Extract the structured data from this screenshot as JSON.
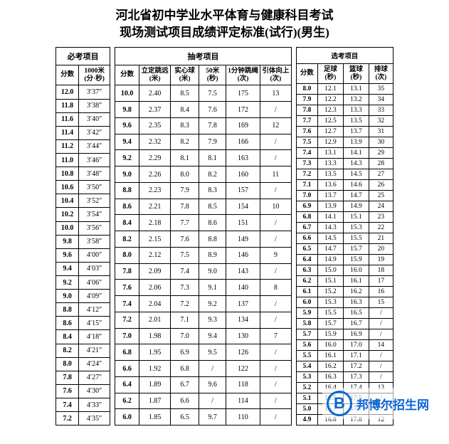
{
  "title_line1": "河北省初中学业水平体育与健康科目考试",
  "title_line2": "现场测试项目成绩评定标准(试行)(男生)",
  "required": {
    "header": "必考项目",
    "cols": [
      "分数",
      "1000米<br>(分·秒)"
    ],
    "rows": [
      [
        "12.0",
        "3′37″"
      ],
      [
        "11.8",
        "3′38″"
      ],
      [
        "11.6",
        "3′40″"
      ],
      [
        "11.4",
        "3′42″"
      ],
      [
        "11.2",
        "3′44″"
      ],
      [
        "11.0",
        "3′46″"
      ],
      [
        "10.8",
        "3′48″"
      ],
      [
        "10.6",
        "3′50″"
      ],
      [
        "10.4",
        "3′52″"
      ],
      [
        "10.2",
        "3′54″"
      ],
      [
        "10.0",
        "3′56″"
      ],
      [
        "9.8",
        "3′58″"
      ],
      [
        "9.6",
        "4′00″"
      ],
      [
        "9.4",
        "4′03″"
      ],
      [
        "9.2",
        "4′06″"
      ],
      [
        "9.0",
        "4′09″"
      ],
      [
        "8.8",
        "4′12″"
      ],
      [
        "8.6",
        "4′15″"
      ],
      [
        "8.4",
        "4′18″"
      ],
      [
        "8.2",
        "4′21″"
      ],
      [
        "8.0",
        "4′24″"
      ],
      [
        "7.8",
        "4′27″"
      ],
      [
        "7.6",
        "4′30″"
      ],
      [
        "7.4",
        "4′33″"
      ],
      [
        "7.2",
        "4′35″"
      ]
    ]
  },
  "test": {
    "header": "抽考项目",
    "cols": [
      "分数",
      "立定跳远<br>(米)",
      "实心球<br>(米)",
      "50米<br>(秒)",
      "1分钟跳绳<br>(次)",
      "引体向上<br>(次)"
    ],
    "rows": [
      [
        "10.0",
        "2.40",
        "8.5",
        "7.5",
        "175",
        "13"
      ],
      [
        "9.8",
        "2.37",
        "8.4",
        "7.6",
        "172",
        "/"
      ],
      [
        "9.6",
        "2.35",
        "8.3",
        "7.8",
        "169",
        "12"
      ],
      [
        "9.4",
        "2.32",
        "8.2",
        "7.9",
        "166",
        "/"
      ],
      [
        "9.2",
        "2.29",
        "8.1",
        "8.1",
        "163",
        "/"
      ],
      [
        "9.0",
        "2.26",
        "8.0",
        "8.2",
        "160",
        "11"
      ],
      [
        "8.8",
        "2.23",
        "7.9",
        "8.3",
        "157",
        "/"
      ],
      [
        "8.6",
        "2.21",
        "7.8",
        "8.5",
        "154",
        "10"
      ],
      [
        "8.4",
        "2.18",
        "7.7",
        "8.6",
        "151",
        "/"
      ],
      [
        "8.2",
        "2.15",
        "7.6",
        "8.8",
        "149",
        "/"
      ],
      [
        "8.0",
        "2.12",
        "7.5",
        "8.9",
        "146",
        "9"
      ],
      [
        "7.8",
        "2.09",
        "7.4",
        "9.0",
        "143",
        "/"
      ],
      [
        "7.6",
        "2.06",
        "7.3",
        "9.1",
        "140",
        "8"
      ],
      [
        "7.4",
        "2.04",
        "7.2",
        "9.2",
        "137",
        "/"
      ],
      [
        "7.2",
        "2.01",
        "7.1",
        "9.3",
        "134",
        "/"
      ],
      [
        "7.0",
        "1.98",
        "7.0",
        "9.4",
        "130",
        "7"
      ],
      [
        "6.8",
        "1.95",
        "6.9",
        "9.5",
        "126",
        "/"
      ],
      [
        "6.6",
        "1.92",
        "6.8",
        "/",
        "122",
        "/"
      ],
      [
        "6.4",
        "1.89",
        "6.7",
        "9.6",
        "118",
        "/"
      ],
      [
        "6.2",
        "1.87",
        "6.6",
        "/",
        "114",
        "/"
      ],
      [
        "6.0",
        "1.85",
        "6.5",
        "9.7",
        "110",
        "/"
      ]
    ]
  },
  "elective": {
    "header": "选考项目",
    "cols": [
      "分数",
      "足球<br>(秒)",
      "篮球<br>(秒)",
      "排球<br>(次)"
    ],
    "rows": [
      [
        "8.0",
        "12.1",
        "13.1",
        "35"
      ],
      [
        "7.9",
        "12.2",
        "13.2",
        "34"
      ],
      [
        "7.8",
        "12.3",
        "13.3",
        "33"
      ],
      [
        "7.7",
        "12.5",
        "13.5",
        "32"
      ],
      [
        "7.6",
        "12.7",
        "13.7",
        "31"
      ],
      [
        "7.5",
        "12.9",
        "13.9",
        "30"
      ],
      [
        "7.4",
        "13.1",
        "14.1",
        "29"
      ],
      [
        "7.3",
        "13.3",
        "14.3",
        "28"
      ],
      [
        "7.2",
        "13.5",
        "14.5",
        "27"
      ],
      [
        "7.1",
        "13.6",
        "14.6",
        "26"
      ],
      [
        "7.0",
        "13.7",
        "14.7",
        "25"
      ],
      [
        "6.9",
        "13.9",
        "14.9",
        "24"
      ],
      [
        "6.8",
        "14.1",
        "15.1",
        "23"
      ],
      [
        "6.7",
        "14.3",
        "15.3",
        "22"
      ],
      [
        "6.6",
        "14.5",
        "15.5",
        "21"
      ],
      [
        "6.5",
        "14.7",
        "15.7",
        "20"
      ],
      [
        "6.4",
        "14.9",
        "15.9",
        "19"
      ],
      [
        "6.3",
        "15.0",
        "16.0",
        "18"
      ],
      [
        "6.2",
        "15.1",
        "16.1",
        "17"
      ],
      [
        "6.1",
        "15.2",
        "16.2",
        "16"
      ],
      [
        "6.0",
        "15.3",
        "16.3",
        "15"
      ],
      [
        "5.9",
        "15.5",
        "16.5",
        "/"
      ],
      [
        "5.8",
        "15.7",
        "16.7",
        "/"
      ],
      [
        "5.7",
        "15.9",
        "16.9",
        "/"
      ],
      [
        "5.6",
        "16.0",
        "17.0",
        "14"
      ],
      [
        "5.5",
        "16.1",
        "17.1",
        "/"
      ],
      [
        "5.4",
        "16.2",
        "17.2",
        "/"
      ],
      [
        "5.3",
        "16.3",
        "17.3",
        "/"
      ],
      [
        "5.2",
        "16.4",
        "17.4",
        "13"
      ],
      [
        "5.1",
        "16.5",
        "17.5",
        "/"
      ],
      [
        "5.0",
        "16.7",
        "17.7",
        "/"
      ],
      [
        "4.9",
        "16.8",
        "17.8",
        "12"
      ]
    ]
  },
  "watermark": {
    "icon": "B",
    "text": "邦博尔招生网"
  }
}
